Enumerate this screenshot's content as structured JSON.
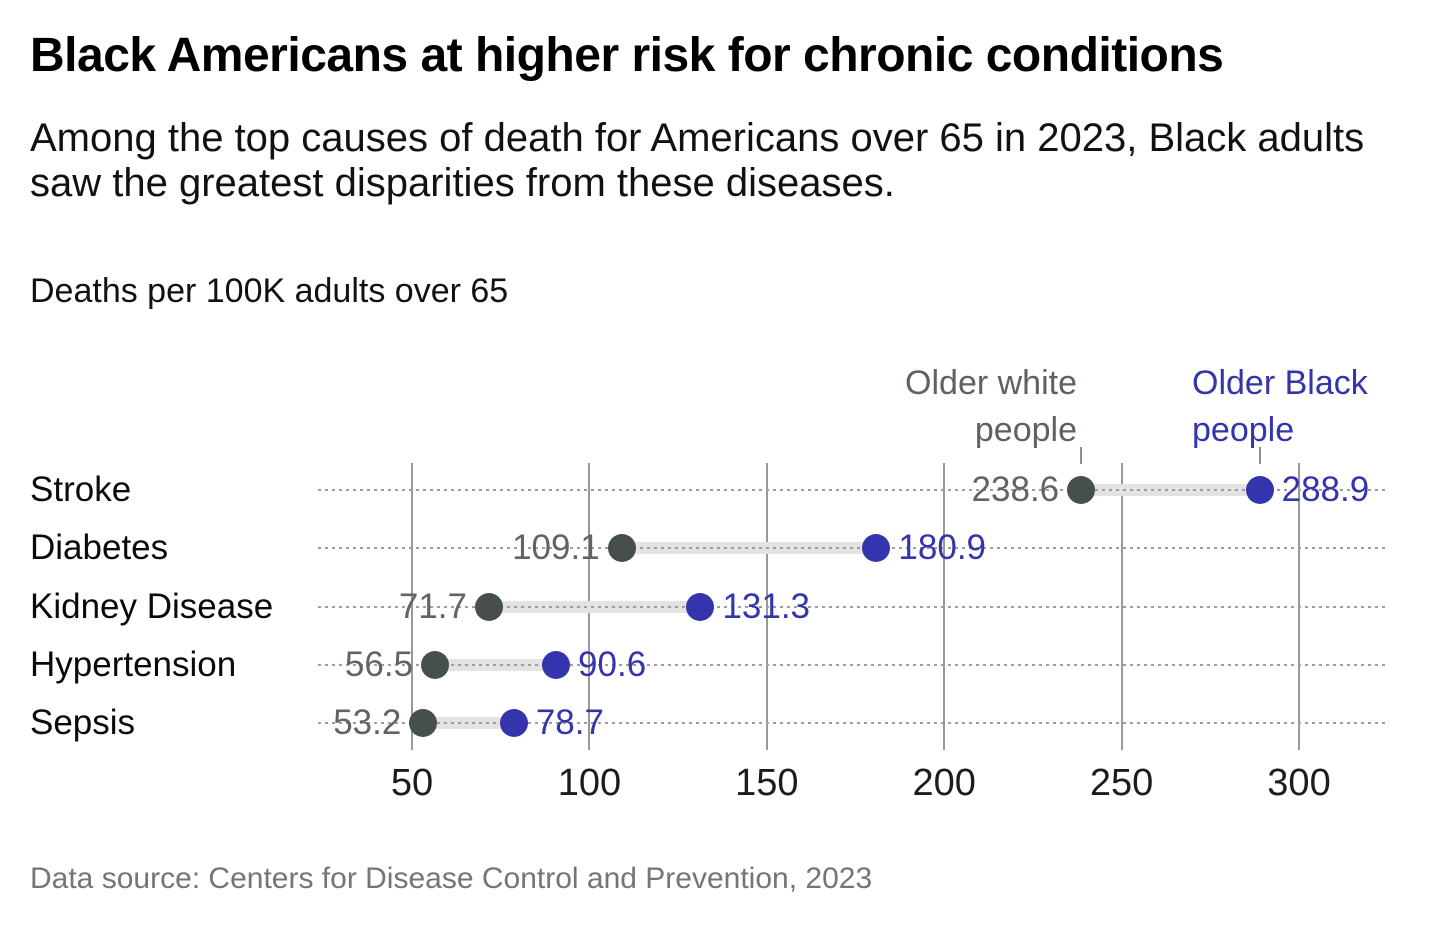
{
  "page": {
    "title": "Black Americans at higher risk for chronic conditions",
    "subtitle": "Among the top causes of death for Americans over 65 in 2023, Black adults saw the greatest disparities from these diseases.",
    "unit_note": "Deaths per 100K adults over 65",
    "source": "Data source: Centers for Disease Control and Prevention, 2023"
  },
  "chart_data": {
    "type": "scatter",
    "variant": "horizontal-dumbbell",
    "title": "Black Americans at higher risk for chronic conditions",
    "xlabel": "Deaths per 100K adults over 65",
    "categories": [
      "Stroke",
      "Diabetes",
      "Kidney Disease",
      "Hypertension",
      "Sepsis"
    ],
    "series": [
      {
        "name": "Older white people",
        "legend_lines": [
          "Older white",
          "people"
        ],
        "dot_color": "#474f4a",
        "label_color": "#5f6466",
        "legend_color": "#5d635f",
        "values": [
          238.6,
          109.1,
          71.7,
          56.5,
          53.2
        ]
      },
      {
        "name": "Older Black people",
        "legend_lines": [
          "Older Black",
          "people"
        ],
        "dot_color": "#3434ac",
        "label_color": "#3434ac",
        "legend_color": "#3434ac",
        "values": [
          288.9,
          180.9,
          131.3,
          90.6,
          78.7
        ]
      }
    ],
    "xticks": [
      50,
      100,
      150,
      200,
      250,
      300
    ],
    "xlim": [
      50,
      300
    ],
    "grid": "vertical gridlines at each tick",
    "row_guides": "dotted horizontal line per category",
    "connector_color": "#e3e3e3",
    "guide_color": "#9e9e9e",
    "legend_position": "above first row, each label pointing to its dot"
  }
}
